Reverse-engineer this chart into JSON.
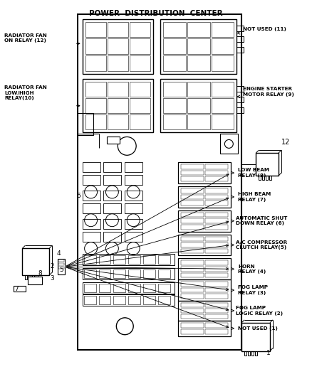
{
  "title": "POWER  DISTRIBUTION  CENTER",
  "background_color": "#ffffff",
  "line_color": "#000000",
  "labels": {
    "radiator_fan_on": "RADIATOR FAN\nON RELAY (12)",
    "radiator_fan_low": "RADIATOR FAN\nLOW/HIGH\nRELAY(10)",
    "not_used_11": "NOT USED (11)",
    "engine_starter": "ENGINE STARTER\nMOTOR RELAY (9)",
    "relay_12_num": "12",
    "low_beam": "LOW BEAM\nRELAY (8)",
    "high_beam": "HIGH BEAM\nRELAY (7)",
    "auto_shut": "AUTOMATIC SHUT\nDOWN RELAY (6)",
    "ac_compressor": "A/C COMPRESSOR\nCLUTCH RELAY(5)",
    "horn": "HORN\nRELAY (4)",
    "fog_lamp": "FOG LAMP\nRELAY (3)",
    "fog_lamp_logic": "FOG LAMP\nLOGIC RELAY (2)",
    "not_used_1": "NOT USED (1)",
    "num_6": "6",
    "num_8": "8",
    "num_2": "2",
    "num_4": "4",
    "num_3": "3",
    "num_5": "5",
    "num_7": "7",
    "num_1": "1"
  }
}
